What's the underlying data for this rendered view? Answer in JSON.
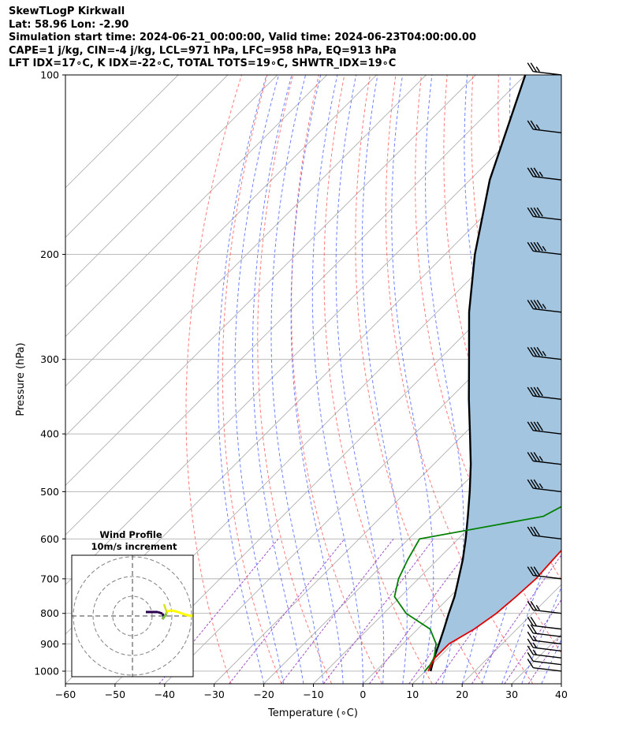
{
  "header": {
    "line1": "SkewTLogP Kirkwall",
    "line2": "Lat: 58.96   Lon: -2.90",
    "line3": "Simulation start time: 2024-06-21_00:00:00, Valid time: 2024-06-23T04:00:00.00",
    "line4": "CAPE=1 j/kg, CIN=-4 j/kg, LCL=971 hPa, LFC=958 hPa, EQ=913 hPa",
    "line5": "LFT IDX=17∘C, K IDX=-22∘C, TOTAL TOTS=19∘C, SHWTR_IDX=19∘C"
  },
  "chart_data": {
    "type": "line",
    "xlabel": "Temperature (∘C)",
    "ylabel": "Pressure (hPa)",
    "xlim": [
      -60,
      40
    ],
    "ylim": [
      1050,
      100
    ],
    "y_scale": "log",
    "x_ticks": [
      -60,
      -50,
      -40,
      -30,
      -20,
      -10,
      0,
      10,
      20,
      30,
      40
    ],
    "x_tick_labels": [
      "−60",
      "−50",
      "−40",
      "−30",
      "−20",
      "−10",
      "0",
      "10",
      "20",
      "30",
      "40"
    ],
    "y_ticks": [
      1000,
      900,
      800,
      700,
      600,
      500,
      400,
      300,
      200,
      100
    ],
    "y_tick_labels": [
      "1000",
      "900",
      "800",
      "700",
      "600",
      "500",
      "400",
      "300",
      "200",
      "100"
    ],
    "grid": true,
    "temperature": {
      "color": "#e00000",
      "pressure": [
        1000,
        975,
        950,
        900,
        850,
        800,
        750,
        700,
        650,
        600,
        550,
        500,
        450,
        400,
        350,
        300,
        250,
        225,
        200,
        175,
        150,
        125,
        100
      ],
      "temp": [
        10.6,
        9.9,
        9.3,
        9.3,
        11.4,
        12.7,
        13.3,
        13.7,
        13.3,
        12.9,
        12.5,
        12.4,
        11.6,
        9.3,
        6.5,
        3.0,
        -4.8,
        -4.4,
        -3.4,
        -0.6,
        5.0,
        8.9,
        17.1
      ]
    },
    "dewpoint": {
      "color": "#008000",
      "pressure": [
        1000,
        975,
        950,
        900,
        850,
        800,
        750,
        700,
        650,
        600,
        550,
        500,
        450,
        400,
        350,
        300,
        250,
        225,
        200,
        175,
        150,
        125,
        100
      ],
      "dewpt": [
        9.9,
        9.7,
        9.1,
        6.7,
        2.5,
        -5.5,
        -11.2,
        -14.0,
        -16.0,
        -17.8,
        2.6,
        6.9,
        3.8,
        0.8,
        -1.0,
        -5.2,
        -8.6,
        -12.2,
        -13.1,
        -14.5,
        -17.1,
        -22.0,
        -9.2
      ]
    },
    "parcel": {
      "color": "#000000",
      "pressure": [
        1000,
        950,
        900,
        850,
        800,
        750,
        700,
        650,
        600,
        550,
        500,
        450,
        400,
        350,
        300,
        250,
        200,
        150,
        100
      ],
      "temp": [
        11.1,
        9.1,
        7.3,
        5.3,
        3.1,
        0.9,
        -1.9,
        -4.9,
        -8.5,
        -12.6,
        -17.2,
        -22.5,
        -28.8,
        -36.0,
        -44.0,
        -53.5,
        -64.0,
        -76.0,
        -90.0
      ]
    },
    "cape_shading_color": "#a3c5e0",
    "dry_adiabat_color": "#ff4d4d",
    "moist_adiabat_color": "#3d57ff",
    "mixing_ratio_color": "#a050c8",
    "wind_barbs": {
      "pressure": [
        1000,
        975,
        950,
        925,
        900,
        875,
        850,
        800,
        700,
        600,
        500,
        450,
        400,
        350,
        300,
        250,
        200,
        175,
        150,
        125,
        100
      ],
      "speed_kt": [
        12,
        14,
        15,
        16,
        18,
        20,
        22,
        25,
        30,
        30,
        35,
        35,
        40,
        40,
        45,
        45,
        45,
        40,
        35,
        25,
        25
      ]
    },
    "wind_profile_inset": {
      "title": "Wind Profile",
      "subtitle": "10m/s increment",
      "ring_color": "#808080",
      "line_colors": [
        "#ffff00",
        "#2a0050"
      ]
    }
  }
}
